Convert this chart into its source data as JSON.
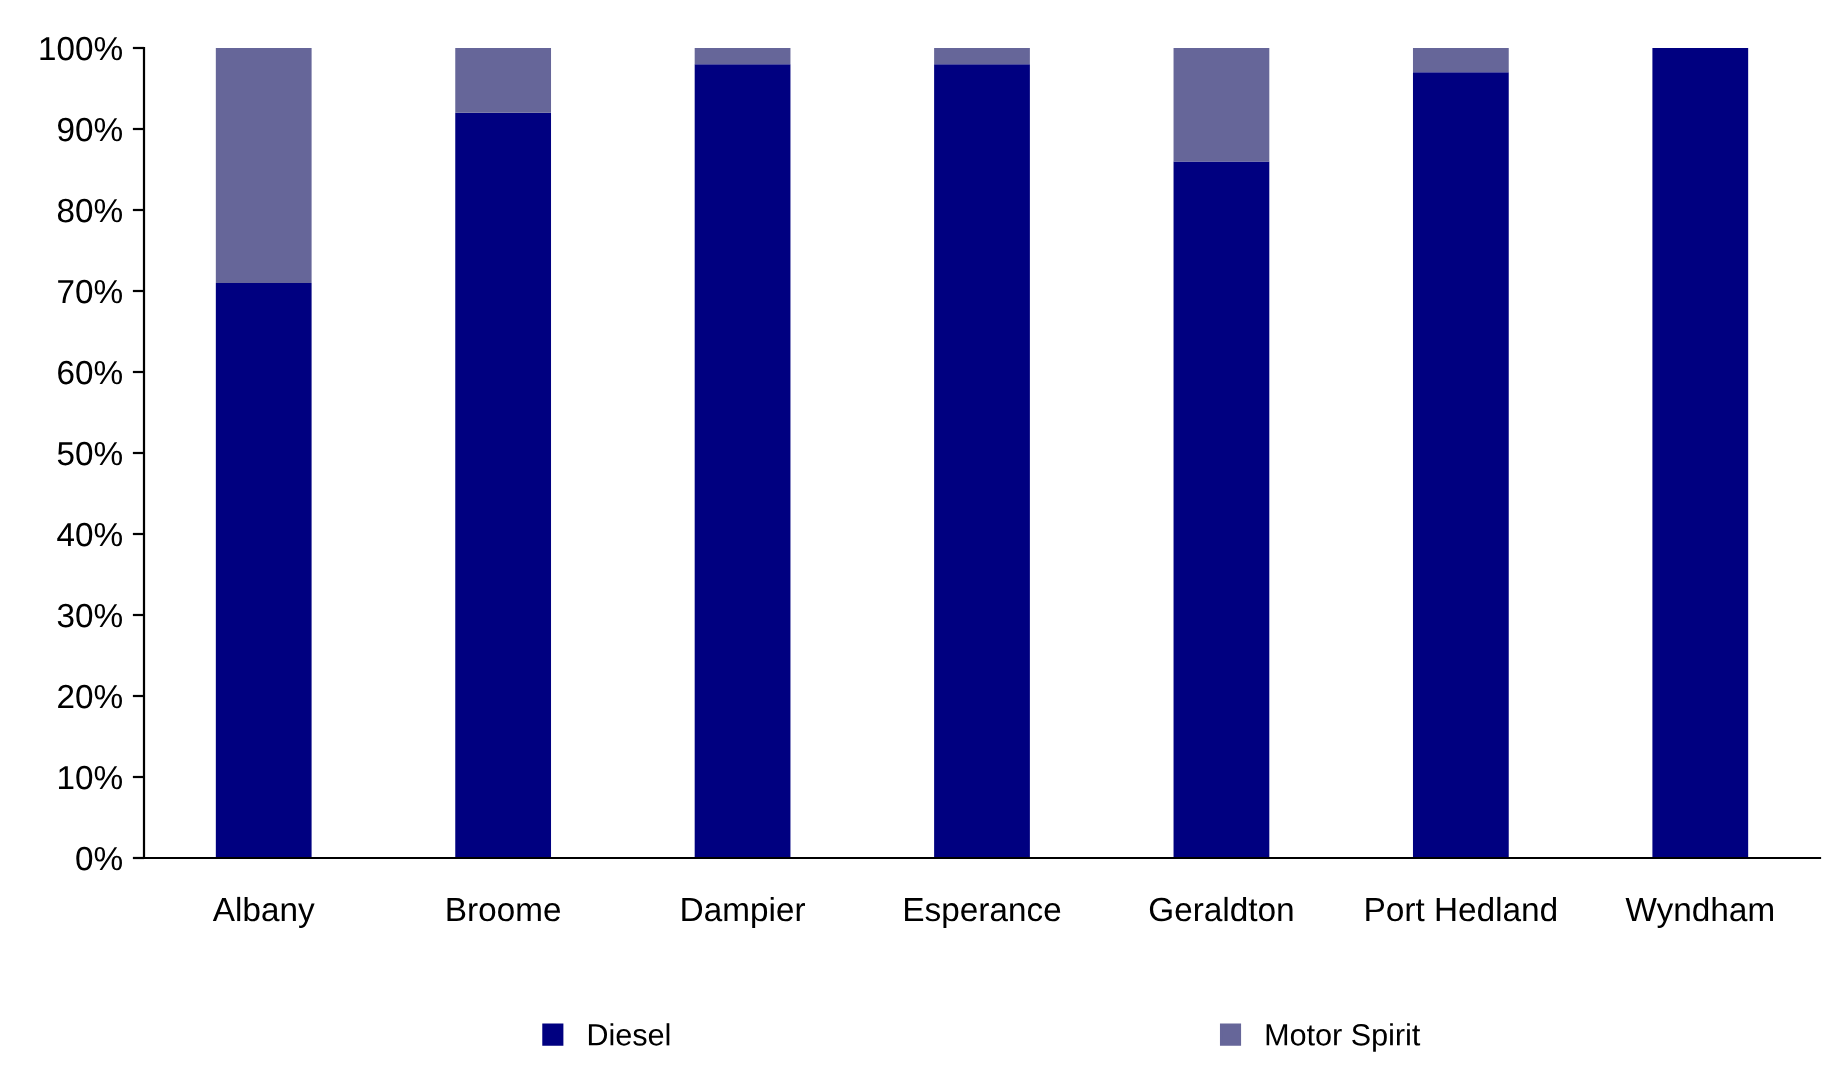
{
  "chart_data": {
    "type": "bar",
    "stacked": true,
    "categories": [
      "Albany",
      "Broome",
      "Dampier",
      "Esperance",
      "Geraldton",
      "Port Hedland",
      "Wyndham"
    ],
    "series": [
      {
        "name": "Diesel",
        "color": "#000080",
        "values": [
          71,
          92,
          98,
          98,
          86,
          97,
          100
        ]
      },
      {
        "name": "Motor Spirit",
        "color": "#666699",
        "values": [
          29,
          8,
          2,
          2,
          14,
          3,
          0
        ]
      }
    ],
    "ylim": [
      0,
      100
    ],
    "yticks": [
      {
        "value": 0,
        "label": "0%"
      },
      {
        "value": 10,
        "label": "10%"
      },
      {
        "value": 20,
        "label": "20%"
      },
      {
        "value": 30,
        "label": "30%"
      },
      {
        "value": 40,
        "label": "40%"
      },
      {
        "value": 50,
        "label": "50%"
      },
      {
        "value": 60,
        "label": "60%"
      },
      {
        "value": 70,
        "label": "70%"
      },
      {
        "value": 80,
        "label": "80%"
      },
      {
        "value": 90,
        "label": "90%"
      },
      {
        "value": 100,
        "label": "100%"
      }
    ],
    "grid": false,
    "legend": "bottom"
  }
}
